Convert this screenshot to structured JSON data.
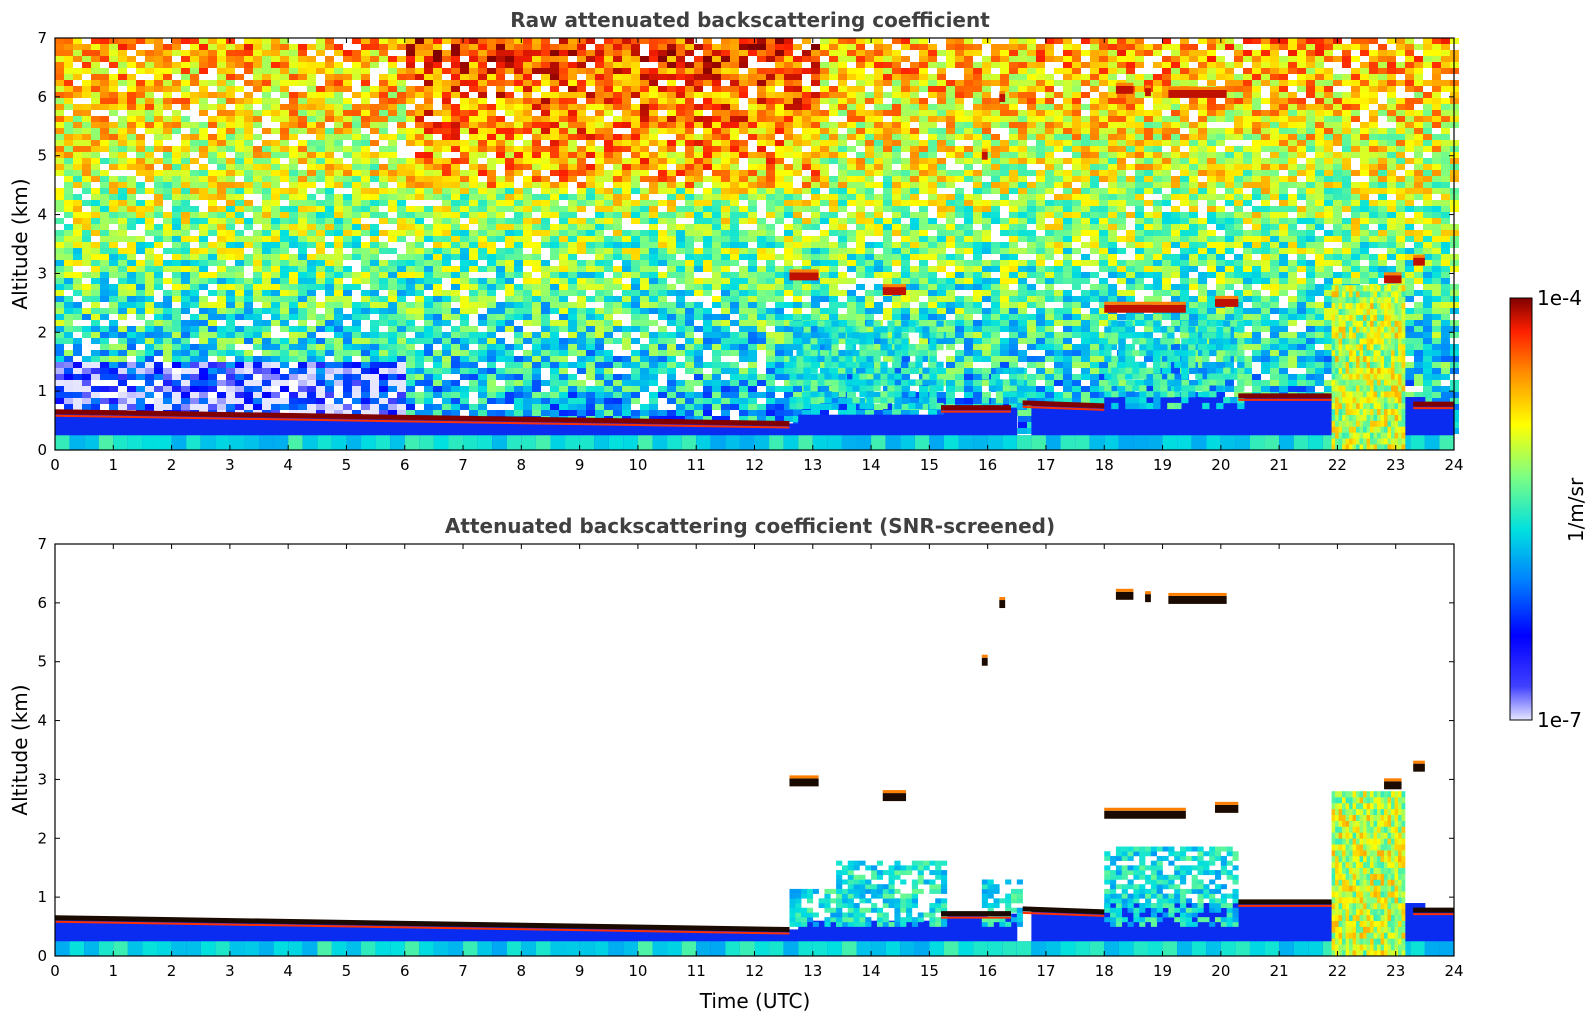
{
  "colors": {
    "colormap": [
      "#e6e6ff",
      "#0000ff",
      "#0080ff",
      "#00e0e0",
      "#80ff80",
      "#ffff00",
      "#ff9000",
      "#ff2000",
      "#800000"
    ],
    "boundary_layer": "#0a2cf0",
    "saturated": "#1a0a00"
  },
  "chart_data": [
    {
      "type": "heatmap",
      "title": "Raw attenuated backscattering coefficient",
      "xlabel": "",
      "ylabel": "Altitude (km)",
      "xlim": [
        0,
        24
      ],
      "ylim": [
        0,
        7
      ],
      "xticks": [
        "0",
        "1",
        "2",
        "3",
        "4",
        "5",
        "6",
        "7",
        "8",
        "9",
        "10",
        "11",
        "12",
        "13",
        "14",
        "15",
        "16",
        "17",
        "18",
        "19",
        "20",
        "21",
        "22",
        "23",
        "24"
      ],
      "yticks": [
        "0",
        "1",
        "2",
        "3",
        "4",
        "5",
        "6",
        "7"
      ],
      "screened": false,
      "background_noise": true,
      "layers": [
        {
          "t0": 0,
          "t1": 12.6,
          "alt_start": 0.65,
          "alt_end": 0.45,
          "kind": "aerosol-top"
        },
        {
          "t0": 15.2,
          "t1": 16.4,
          "alt_start": 0.72,
          "alt_end": 0.72,
          "kind": "aerosol-top"
        },
        {
          "t0": 16.6,
          "t1": 18.0,
          "alt_start": 0.8,
          "alt_end": 0.75,
          "kind": "aerosol-top"
        },
        {
          "t0": 20.3,
          "t1": 21.9,
          "alt_start": 0.92,
          "alt_end": 0.92,
          "kind": "aerosol-top"
        },
        {
          "t0": 23.3,
          "t1": 24.0,
          "alt_start": 0.78,
          "alt_end": 0.78,
          "kind": "aerosol-top"
        }
      ],
      "clouds": [
        {
          "t0": 12.6,
          "t1": 13.1,
          "alt": 2.95,
          "kind": "cloud"
        },
        {
          "t0": 14.2,
          "t1": 14.6,
          "alt": 2.7,
          "kind": "cloud"
        },
        {
          "t0": 15.9,
          "t1": 16.0,
          "alt": 5.0,
          "kind": "cloud"
        },
        {
          "t0": 16.2,
          "t1": 16.3,
          "alt": 5.98,
          "kind": "cloud"
        },
        {
          "t0": 18.2,
          "t1": 18.5,
          "alt": 6.12,
          "kind": "cloud"
        },
        {
          "t0": 18.7,
          "t1": 18.8,
          "alt": 6.08,
          "kind": "cloud"
        },
        {
          "t0": 19.1,
          "t1": 20.1,
          "alt": 6.05,
          "kind": "cloud"
        },
        {
          "t0": 18.0,
          "t1": 19.4,
          "alt": 2.4,
          "kind": "cloud"
        },
        {
          "t0": 19.9,
          "t1": 20.3,
          "alt": 2.5,
          "kind": "cloud"
        },
        {
          "t0": 22.8,
          "t1": 23.1,
          "alt": 2.9,
          "kind": "cloud"
        },
        {
          "t0": 23.3,
          "t1": 23.5,
          "alt": 3.2,
          "kind": "cloud"
        }
      ],
      "convective": {
        "t0": 21.9,
        "t1": 23.1,
        "alt_top": 2.8
      }
    },
    {
      "type": "heatmap",
      "title": "Attenuated backscattering coefficient (SNR-screened)",
      "xlabel": "Time (UTC)",
      "ylabel": "Altitude (km)",
      "xlim": [
        0,
        24
      ],
      "ylim": [
        0,
        7
      ],
      "xticks": [
        "0",
        "1",
        "2",
        "3",
        "4",
        "5",
        "6",
        "7",
        "8",
        "9",
        "10",
        "11",
        "12",
        "13",
        "14",
        "15",
        "16",
        "17",
        "18",
        "19",
        "20",
        "21",
        "22",
        "23",
        "24"
      ],
      "yticks": [
        "0",
        "1",
        "2",
        "3",
        "4",
        "5",
        "6",
        "7"
      ],
      "screened": true,
      "background_noise": false
    }
  ],
  "colorbar": {
    "label": "1/m/sr",
    "max_label": "1e-4",
    "min_label": "1e-7",
    "scale": "log",
    "range": [
      1e-07,
      0.0001
    ]
  }
}
